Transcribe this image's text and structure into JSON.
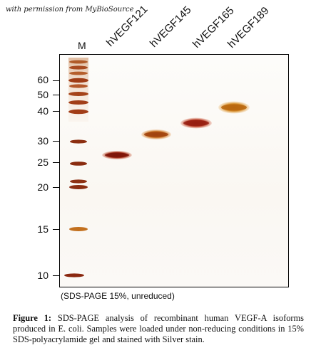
{
  "watermark": "with permission from MyBioSource",
  "marker_lane_label": "M",
  "lanes": [
    {
      "label": "hVEGF121"
    },
    {
      "label": "hVEGF145"
    },
    {
      "label": "hVEGF165"
    },
    {
      "label": "hVEGF189"
    }
  ],
  "mw_markers": [
    "60",
    "50",
    "40",
    "30",
    "25",
    "20",
    "15",
    "10"
  ],
  "gel_note": "(SDS-PAGE 15%, unreduced)",
  "caption": {
    "label": "Figure 1:",
    "text": " SDS-PAGE analysis of recombinant human VEGF-A isoforms produced in E. coli. Samples were loaded under non-reducing conditions in 15% SDS-polyacrylamide gel and stained with Silver stain."
  },
  "colors": {
    "band_dark": "#8a1a0a",
    "band_mid": "#b7321b",
    "band_orange": "#c86a1a",
    "band_gold": "#d88a28",
    "marker_band": "#a8421a"
  }
}
